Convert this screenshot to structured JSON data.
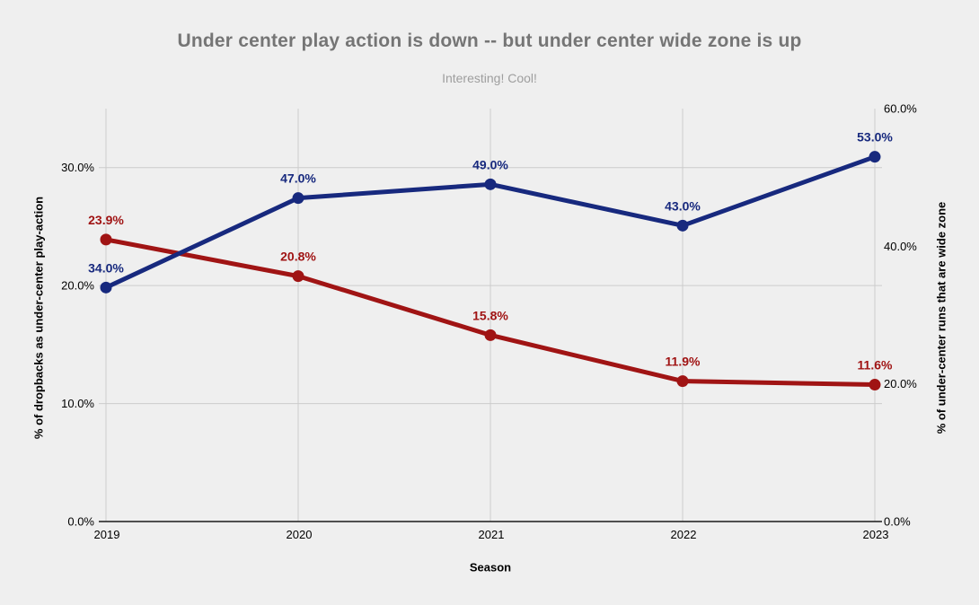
{
  "header": {
    "title": "Under center play action is down -- but under center wide zone is up",
    "subtitle": "Interesting! Cool!"
  },
  "colors": {
    "background": "#efefef",
    "grid": "#cccccc",
    "axis_line": "#1a1a1a",
    "tick": "#000000",
    "title": "#757575",
    "subtitle": "#9e9e9e"
  },
  "chart_data": {
    "type": "line",
    "title": "Under center play action is down -- but under center wide zone is up",
    "subtitle": "Interesting! Cool!",
    "xlabel": "Season",
    "categories": [
      "2019",
      "2020",
      "2021",
      "2022",
      "2023"
    ],
    "grid": true,
    "legend_position": "none",
    "left_axis": {
      "label": "% of dropbacks as under-center play-action",
      "ticks": [
        "0.0%",
        "10.0%",
        "20.0%",
        "30.0%"
      ],
      "tick_values": [
        0,
        10,
        20,
        30
      ],
      "range": [
        0,
        35
      ]
    },
    "right_axis": {
      "label": "% of under-center runs that are wide zone",
      "ticks": [
        "0.0%",
        "20.0%",
        "40.0%",
        "60.0%"
      ],
      "tick_values": [
        0,
        20,
        40,
        60
      ],
      "range": [
        0,
        60
      ]
    },
    "series": [
      {
        "id": "play-action",
        "name": "% of dropbacks as under-center play-action",
        "axis": "left",
        "color": "#a01414",
        "values": [
          23.9,
          20.8,
          15.8,
          11.9,
          11.6
        ],
        "labels": [
          "23.9%",
          "20.8%",
          "15.8%",
          "11.9%",
          "11.6%"
        ]
      },
      {
        "id": "wide-zone",
        "name": "% of under-center runs that are wide zone",
        "axis": "right",
        "color": "#17297e",
        "values": [
          34.0,
          47.0,
          49.0,
          43.0,
          53.0
        ],
        "labels": [
          "34.0%",
          "47.0%",
          "49.0%",
          "43.0%",
          "53.0%"
        ]
      }
    ]
  }
}
